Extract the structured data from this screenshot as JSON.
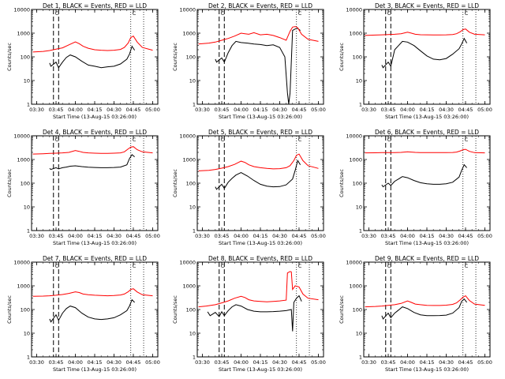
{
  "figure": {
    "xlabel": "Start Time (13-Aug-15 03:26:00)",
    "ylabel": "Counts/sec",
    "xticks": [
      "03:30",
      "03:45",
      "04:00",
      "04:15",
      "04:30",
      "04:45",
      "05:00"
    ],
    "yticks": [
      "1",
      "10",
      "100",
      "1000",
      "10000"
    ],
    "colors": {
      "events": "#000000",
      "lld": "#ff0000"
    }
  },
  "chart_data": [
    {
      "type": "line",
      "title": "Det 1, BLACK = Events, RED = LLD",
      "flags": "C",
      "ylog": true,
      "ylim": [
        1,
        10000
      ],
      "xlim": [
        "03:26",
        "05:04"
      ],
      "x_breaks": [
        "03:43",
        "03:47",
        "04:43",
        "04:53"
      ],
      "series": [
        {
          "name": "BLACK = Events",
          "x": [
            "03:40",
            "03:41",
            "03:45",
            "03:47",
            "03:50",
            "03:53",
            "03:56",
            "04:00",
            "04:05",
            "04:10",
            "04:15",
            "04:20",
            "04:25",
            "04:30",
            "04:35",
            "04:40",
            "04:42",
            "04:44",
            "04:46"
          ],
          "y": [
            55,
            40,
            60,
            35,
            60,
            95,
            120,
            100,
            65,
            45,
            40,
            35,
            38,
            40,
            50,
            80,
            130,
            280,
            190
          ]
        },
        {
          "name": "RED = LLD",
          "x": [
            "03:27",
            "03:35",
            "03:40",
            "03:45",
            "03:50",
            "03:55",
            "04:00",
            "04:03",
            "04:06",
            "04:10",
            "04:15",
            "04:20",
            "04:25",
            "04:30",
            "04:35",
            "04:38",
            "04:41",
            "04:43",
            "04:45",
            "04:48",
            "04:52",
            "05:00"
          ],
          "y": [
            160,
            170,
            185,
            210,
            240,
            320,
            430,
            360,
            280,
            230,
            200,
            190,
            185,
            190,
            205,
            250,
            380,
            650,
            750,
            420,
            250,
            190
          ]
        }
      ]
    },
    {
      "type": "line",
      "title": "Det 2, BLACK = Events, RED = LLD",
      "flags": "C",
      "ylog": true,
      "ylim": [
        1,
        10000
      ],
      "xlim": [
        "03:26",
        "05:04"
      ],
      "x_breaks": [
        "03:43",
        "03:47",
        "04:43",
        "04:53"
      ],
      "series": [
        {
          "name": "BLACK = Events",
          "x": [
            "03:40",
            "03:41",
            "03:45",
            "03:47",
            "03:50",
            "03:53",
            "03:56",
            "04:00",
            "04:05",
            "04:10",
            "04:15",
            "04:20",
            "04:25",
            "04:30",
            "04:34",
            "04:36",
            "04:37",
            "04:38",
            "04:40",
            "04:42",
            "04:44",
            "04:46"
          ],
          "y": [
            80,
            60,
            90,
            60,
            150,
            300,
            450,
            400,
            380,
            350,
            330,
            300,
            320,
            250,
            100,
            3,
            1,
            3,
            1300,
            1500,
            1600,
            1300
          ]
        },
        {
          "name": "RED = LLD",
          "x": [
            "03:27",
            "03:35",
            "03:40",
            "03:45",
            "03:50",
            "03:55",
            "04:00",
            "04:03",
            "04:06",
            "04:10",
            "04:15",
            "04:20",
            "04:25",
            "04:30",
            "04:35",
            "04:38",
            "04:40",
            "04:42",
            "04:44",
            "04:47",
            "04:52",
            "05:00"
          ],
          "y": [
            350,
            380,
            420,
            500,
            600,
            750,
            1000,
            950,
            900,
            1050,
            850,
            900,
            800,
            650,
            500,
            1200,
            1800,
            1900,
            1700,
            900,
            550,
            450
          ]
        }
      ]
    },
    {
      "type": "line",
      "title": "Det 3, BLACK = Events, RED = LLD",
      "flags": "C",
      "ylog": true,
      "ylim": [
        1,
        10000
      ],
      "xlim": [
        "03:26",
        "05:04"
      ],
      "x_breaks": [
        "03:43",
        "03:47",
        "04:43",
        "04:53"
      ],
      "series": [
        {
          "name": "BLACK = Events",
          "x": [
            "03:40",
            "03:41",
            "03:45",
            "03:47",
            "03:50",
            "03:53",
            "03:56",
            "04:00",
            "04:05",
            "04:10",
            "04:15",
            "04:20",
            "04:25",
            "04:30",
            "04:35",
            "04:40",
            "04:42",
            "04:44",
            "04:46"
          ],
          "y": [
            45,
            35,
            60,
            40,
            200,
            300,
            450,
            420,
            300,
            180,
            110,
            80,
            75,
            85,
            130,
            220,
            350,
            600,
            380
          ]
        },
        {
          "name": "RED = LLD",
          "x": [
            "03:27",
            "03:35",
            "03:40",
            "03:45",
            "03:50",
            "03:55",
            "04:00",
            "04:03",
            "04:06",
            "04:10",
            "04:15",
            "04:20",
            "04:25",
            "04:30",
            "04:35",
            "04:38",
            "04:41",
            "04:43",
            "04:45",
            "04:48",
            "04:52",
            "05:00"
          ],
          "y": [
            800,
            830,
            850,
            880,
            900,
            950,
            1100,
            1000,
            900,
            860,
            850,
            840,
            840,
            850,
            880,
            950,
            1150,
            1400,
            1500,
            1100,
            900,
            850
          ]
        }
      ]
    },
    {
      "type": "line",
      "title": "Det 4, BLACK = Events, RED = LLD",
      "flags": "C",
      "ylog": true,
      "ylim": [
        1,
        10000
      ],
      "xlim": [
        "03:26",
        "05:04"
      ],
      "x_breaks": [
        "03:43",
        "03:47",
        "04:43",
        "04:53"
      ],
      "series": [
        {
          "name": "BLACK = Events",
          "x": [
            "03:40",
            "03:41",
            "03:45",
            "03:47",
            "03:50",
            "03:53",
            "03:56",
            "04:00",
            "04:05",
            "04:10",
            "04:15",
            "04:20",
            "04:25",
            "04:30",
            "04:35",
            "04:40",
            "04:42",
            "04:44",
            "04:46"
          ],
          "y": [
            420,
            380,
            450,
            400,
            450,
            480,
            520,
            540,
            500,
            470,
            460,
            450,
            450,
            460,
            480,
            600,
            1100,
            1600,
            1300
          ]
        },
        {
          "name": "RED = LLD",
          "x": [
            "03:27",
            "03:35",
            "03:40",
            "03:45",
            "03:50",
            "03:55",
            "04:00",
            "04:03",
            "04:06",
            "04:10",
            "04:15",
            "04:20",
            "04:25",
            "04:30",
            "04:35",
            "04:38",
            "04:41",
            "04:43",
            "04:45",
            "04:48",
            "04:52",
            "05:00"
          ],
          "y": [
            1700,
            1750,
            1800,
            1850,
            1900,
            2000,
            2400,
            2200,
            2000,
            1900,
            1850,
            1800,
            1800,
            1850,
            1900,
            2100,
            2800,
            3300,
            3500,
            2600,
            2100,
            1900
          ]
        }
      ]
    },
    {
      "type": "line",
      "title": "Det 5, BLACK = Events, RED = LLD",
      "flags": "C",
      "ylog": true,
      "ylim": [
        1,
        10000
      ],
      "xlim": [
        "03:26",
        "05:04"
      ],
      "x_breaks": [
        "03:43",
        "03:47",
        "04:43",
        "04:53"
      ],
      "series": [
        {
          "name": "BLACK = Events",
          "x": [
            "03:40",
            "03:41",
            "03:45",
            "03:47",
            "03:50",
            "03:53",
            "03:56",
            "04:00",
            "04:05",
            "04:10",
            "04:15",
            "04:20",
            "04:25",
            "04:30",
            "04:35",
            "04:40",
            "04:42",
            "04:44",
            "04:46"
          ],
          "y": [
            70,
            55,
            90,
            60,
            110,
            160,
            220,
            280,
            200,
            130,
            90,
            75,
            70,
            72,
            85,
            150,
            350,
            900,
            600
          ]
        },
        {
          "name": "RED = LLD",
          "x": [
            "03:27",
            "03:35",
            "03:40",
            "03:45",
            "03:50",
            "03:55",
            "04:00",
            "04:03",
            "04:06",
            "04:10",
            "04:15",
            "04:20",
            "04:25",
            "04:30",
            "04:35",
            "04:38",
            "04:41",
            "04:43",
            "04:45",
            "04:48",
            "04:52",
            "05:00"
          ],
          "y": [
            330,
            350,
            380,
            430,
            500,
            620,
            850,
            750,
            600,
            500,
            450,
            420,
            400,
            410,
            450,
            550,
            900,
            1500,
            1700,
            900,
            550,
            420
          ]
        }
      ]
    },
    {
      "type": "line",
      "title": "Det 6, BLACK = Events, RED = LLD",
      "flags": "C",
      "ylog": true,
      "ylim": [
        1,
        10000
      ],
      "xlim": [
        "03:26",
        "05:04"
      ],
      "x_breaks": [
        "03:43",
        "03:47",
        "04:43",
        "04:53"
      ],
      "series": [
        {
          "name": "BLACK = Events",
          "x": [
            "03:40",
            "03:41",
            "03:45",
            "03:47",
            "03:50",
            "03:53",
            "03:56",
            "04:00",
            "04:05",
            "04:10",
            "04:15",
            "04:20",
            "04:25",
            "04:30",
            "04:35",
            "04:40",
            "04:42",
            "04:44",
            "04:46"
          ],
          "y": [
            85,
            70,
            100,
            80,
            120,
            150,
            190,
            170,
            130,
            105,
            95,
            90,
            90,
            95,
            110,
            180,
            350,
            600,
            450
          ]
        },
        {
          "name": "RED = LLD",
          "x": [
            "03:27",
            "03:35",
            "03:40",
            "03:45",
            "03:50",
            "03:55",
            "04:00",
            "04:03",
            "04:06",
            "04:10",
            "04:15",
            "04:20",
            "04:25",
            "04:30",
            "04:35",
            "04:38",
            "04:41",
            "04:43",
            "04:45",
            "04:48",
            "04:52",
            "05:00"
          ],
          "y": [
            1900,
            1920,
            1950,
            1950,
            1970,
            2000,
            2100,
            2050,
            2000,
            1970,
            1960,
            1950,
            1950,
            1960,
            1980,
            2050,
            2300,
            2600,
            2700,
            2200,
            1950,
            1900
          ]
        }
      ]
    },
    {
      "type": "line",
      "title": "Det 7, BLACK = Events, RED = LLD",
      "flags": "C",
      "ylog": true,
      "ylim": [
        1,
        10000
      ],
      "xlim": [
        "03:26",
        "05:04"
      ],
      "x_breaks": [
        "03:43",
        "03:47",
        "04:43",
        "04:53"
      ],
      "series": [
        {
          "name": "BLACK = Events",
          "x": [
            "03:40",
            "03:41",
            "03:45",
            "03:47",
            "03:50",
            "03:53",
            "03:56",
            "04:00",
            "04:05",
            "04:10",
            "04:15",
            "04:20",
            "04:25",
            "04:30",
            "04:35",
            "04:40",
            "04:42",
            "04:44",
            "04:46"
          ],
          "y": [
            40,
            30,
            60,
            35,
            70,
            110,
            140,
            120,
            70,
            48,
            40,
            38,
            40,
            45,
            60,
            90,
            140,
            260,
            200
          ]
        },
        {
          "name": "RED = LLD",
          "x": [
            "03:27",
            "03:35",
            "03:40",
            "03:45",
            "03:50",
            "03:55",
            "04:00",
            "04:03",
            "04:06",
            "04:10",
            "04:15",
            "04:20",
            "04:25",
            "04:30",
            "04:35",
            "04:38",
            "04:41",
            "04:43",
            "04:45",
            "04:48",
            "04:52",
            "05:00"
          ],
          "y": [
            360,
            370,
            380,
            400,
            430,
            480,
            560,
            520,
            450,
            420,
            400,
            390,
            380,
            390,
            410,
            450,
            560,
            700,
            750,
            550,
            420,
            380
          ]
        }
      ]
    },
    {
      "type": "line",
      "title": "Det 8, BLACK = Events, RED = LLD",
      "flags": "C",
      "ylog": true,
      "ylim": [
        1,
        10000
      ],
      "xlim": [
        "03:26",
        "05:04"
      ],
      "x_breaks": [
        "03:43",
        "03:47",
        "04:43",
        "04:53"
      ],
      "series": [
        {
          "name": "BLACK = Events",
          "x": [
            "03:34",
            "03:36",
            "03:40",
            "03:43",
            "03:45",
            "03:47",
            "03:50",
            "03:53",
            "03:56",
            "04:00",
            "04:05",
            "04:10",
            "04:15",
            "04:20",
            "04:25",
            "04:30",
            "04:35",
            "04:39",
            "04:40",
            "04:41",
            "04:43",
            "04:45",
            "04:47"
          ],
          "y": [
            80,
            55,
            75,
            50,
            80,
            55,
            90,
            130,
            160,
            140,
            100,
            85,
            80,
            80,
            82,
            85,
            90,
            100,
            12,
            200,
            300,
            380,
            220
          ]
        },
        {
          "name": "RED = LLD",
          "x": [
            "03:27",
            "03:33",
            "03:40",
            "03:45",
            "03:50",
            "03:55",
            "04:00",
            "04:03",
            "04:06",
            "04:10",
            "04:15",
            "04:20",
            "04:25",
            "04:30",
            "04:35",
            "04:36",
            "04:38",
            "04:39",
            "04:40",
            "04:42",
            "04:45",
            "04:48",
            "04:52",
            "05:00"
          ],
          "y": [
            130,
            140,
            160,
            190,
            230,
            300,
            360,
            320,
            260,
            230,
            220,
            210,
            220,
            230,
            250,
            3500,
            4000,
            3900,
            700,
            1000,
            900,
            450,
            300,
            260
          ]
        }
      ]
    },
    {
      "type": "line",
      "title": "Det 9, BLACK = Events, RED = LLD",
      "flags": "C",
      "ylog": true,
      "ylim": [
        1,
        10000
      ],
      "xlim": [
        "03:26",
        "05:04"
      ],
      "x_breaks": [
        "03:43",
        "03:47",
        "04:43",
        "04:53"
      ],
      "series": [
        {
          "name": "BLACK = Events",
          "x": [
            "03:40",
            "03:41",
            "03:45",
            "03:47",
            "03:50",
            "03:53",
            "03:56",
            "04:00",
            "04:05",
            "04:10",
            "04:15",
            "04:20",
            "04:25",
            "04:30",
            "04:35",
            "04:40",
            "04:42",
            "04:44",
            "04:46"
          ],
          "y": [
            55,
            40,
            70,
            45,
            70,
            95,
            130,
            110,
            75,
            60,
            55,
            55,
            56,
            58,
            70,
            120,
            220,
            280,
            200
          ]
        },
        {
          "name": "RED = LLD",
          "x": [
            "03:27",
            "03:35",
            "03:40",
            "03:45",
            "03:50",
            "03:55",
            "04:00",
            "04:03",
            "04:06",
            "04:10",
            "04:15",
            "04:20",
            "04:25",
            "04:30",
            "04:35",
            "04:38",
            "04:41",
            "04:43",
            "04:45",
            "04:48",
            "04:52",
            "05:00"
          ],
          "y": [
            130,
            135,
            140,
            150,
            160,
            180,
            230,
            200,
            170,
            160,
            150,
            148,
            148,
            152,
            165,
            190,
            260,
            330,
            380,
            240,
            170,
            150
          ]
        }
      ]
    }
  ]
}
